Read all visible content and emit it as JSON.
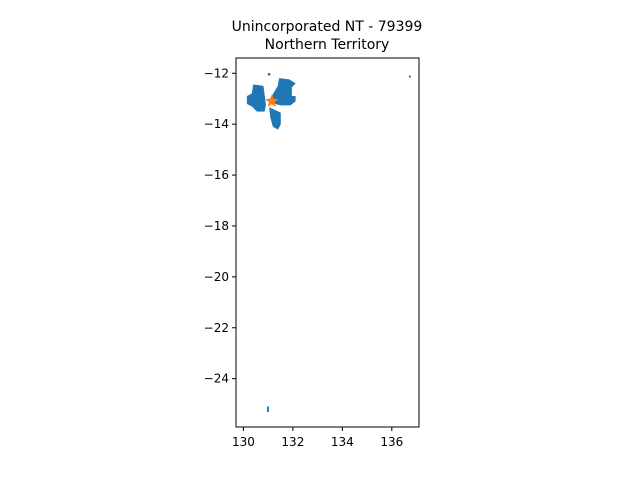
{
  "title_line1": "Unincorporated NT - 79399",
  "title_line2": "Northern Territory",
  "colors": {
    "region_fill": "#1f77b4",
    "marker_fill": "#ff7f0e",
    "axes": "#000000",
    "background": "#ffffff"
  },
  "chart_data": {
    "type": "map",
    "xlim": [
      129.7,
      137.1
    ],
    "ylim": [
      -25.9,
      -11.4
    ],
    "xticks": [
      130,
      132,
      134,
      136
    ],
    "yticks": [
      -12,
      -14,
      -16,
      -18,
      -20,
      -22,
      -24
    ],
    "grid": false,
    "marker": {
      "shape": "star",
      "lon": 131.15,
      "lat": -13.1
    },
    "regions": [
      {
        "name": "west-block",
        "points": [
          [
            130.4,
            -12.45
          ],
          [
            130.8,
            -12.5
          ],
          [
            130.85,
            -12.85
          ],
          [
            130.9,
            -13.25
          ],
          [
            130.85,
            -13.5
          ],
          [
            130.55,
            -13.5
          ],
          [
            130.35,
            -13.3
          ],
          [
            130.15,
            -13.2
          ],
          [
            130.15,
            -12.9
          ],
          [
            130.35,
            -12.8
          ]
        ]
      },
      {
        "name": "central-block",
        "points": [
          [
            131.45,
            -12.2
          ],
          [
            131.85,
            -12.25
          ],
          [
            132.1,
            -12.4
          ],
          [
            131.95,
            -12.55
          ],
          [
            131.95,
            -12.9
          ],
          [
            132.1,
            -12.9
          ],
          [
            132.1,
            -13.1
          ],
          [
            131.9,
            -13.25
          ],
          [
            131.5,
            -13.25
          ],
          [
            131.1,
            -13.15
          ],
          [
            131.15,
            -12.9
          ],
          [
            131.4,
            -12.5
          ]
        ]
      },
      {
        "name": "south-lobe",
        "points": [
          [
            131.05,
            -13.35
          ],
          [
            131.5,
            -13.55
          ],
          [
            131.5,
            -14.0
          ],
          [
            131.4,
            -14.2
          ],
          [
            131.2,
            -14.1
          ],
          [
            131.1,
            -13.75
          ]
        ]
      },
      {
        "name": "small-southern-patch",
        "points": [
          [
            130.96,
            -25.1
          ],
          [
            131.02,
            -25.1
          ],
          [
            131.02,
            -25.3
          ],
          [
            130.96,
            -25.3
          ]
        ]
      },
      {
        "name": "islet-north",
        "points": [
          [
            131.0,
            -12.0
          ],
          [
            131.08,
            -12.0
          ],
          [
            131.08,
            -12.08
          ],
          [
            131.0,
            -12.08
          ]
        ]
      },
      {
        "name": "islet-east",
        "points": [
          [
            136.7,
            -12.1
          ],
          [
            136.76,
            -12.1
          ],
          [
            136.76,
            -12.16
          ],
          [
            136.7,
            -12.16
          ]
        ]
      }
    ]
  }
}
